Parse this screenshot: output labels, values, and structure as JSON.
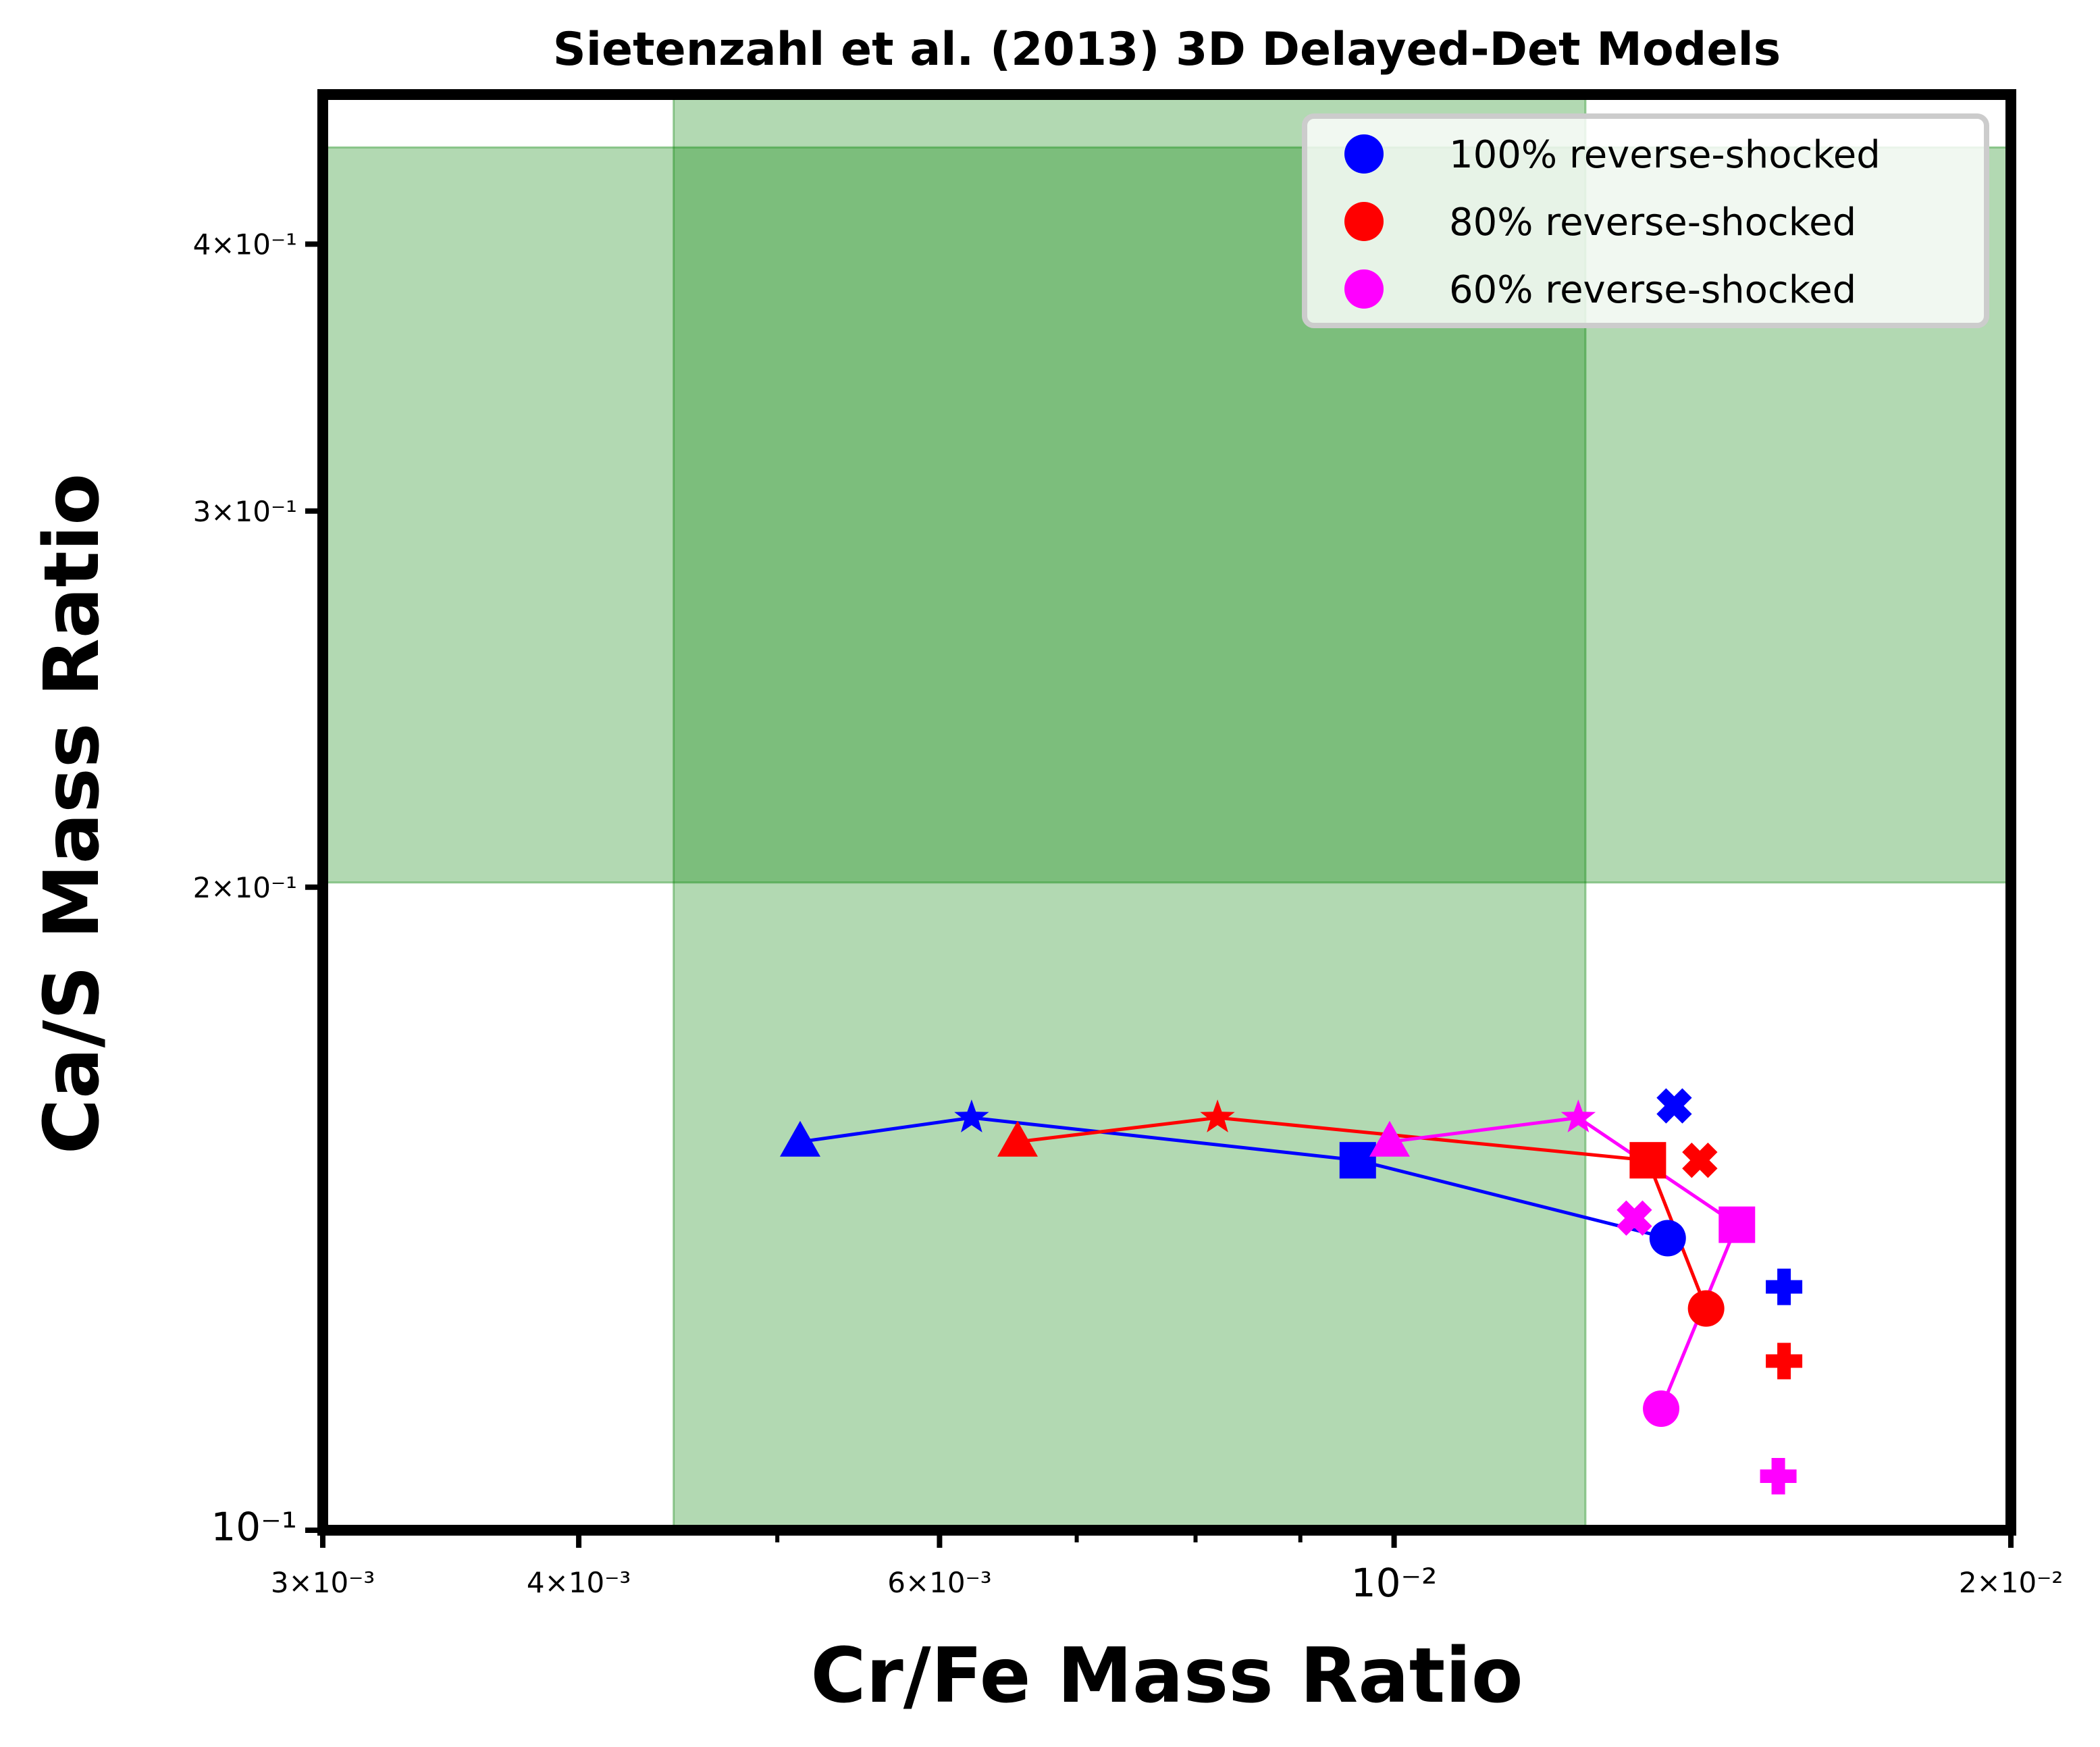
{
  "chart_data": {
    "type": "scatter",
    "title": "Sietenzahl et al. (2013) 3D Delayed-Det Models",
    "xlabel": "Cr/Fe Mass Ratio",
    "ylabel": "Ca/S Mass Ratio",
    "xscale": "log",
    "yscale": "log",
    "xlim": [
      0.003,
      0.02
    ],
    "ylim": [
      0.1,
      0.47
    ],
    "x_ticks": [
      {
        "value": 0.003,
        "label": "3×10⁻³"
      },
      {
        "value": 0.004,
        "label": "4×10⁻³"
      },
      {
        "value": 0.006,
        "label": "6×10⁻³"
      },
      {
        "value": 0.01,
        "label": "10⁻²"
      },
      {
        "value": 0.02,
        "label": "2×10⁻²"
      }
    ],
    "x_minor_ticks": [
      0.005,
      0.007,
      0.008,
      0.009
    ],
    "y_ticks": [
      {
        "value": 0.1,
        "label": "10⁻¹"
      },
      {
        "value": 0.2,
        "label": "2×10⁻¹"
      },
      {
        "value": 0.3,
        "label": "3×10⁻¹"
      },
      {
        "value": 0.4,
        "label": "4×10⁻¹"
      }
    ],
    "bands": [
      {
        "orientation": "vertical",
        "x_range": [
          0.00445,
          0.0124
        ],
        "color": "#008000",
        "opacity": 0.3
      },
      {
        "orientation": "horizontal",
        "y_range": [
          0.201,
          0.444
        ],
        "color": "#008000",
        "opacity": 0.3
      }
    ],
    "legend": {
      "location": "upper right",
      "entries": [
        {
          "label": "100% reverse-shocked",
          "color": "#0000ff"
        },
        {
          "label": "80% reverse-shocked",
          "color": "#ff0000"
        },
        {
          "label": "60% reverse-shocked",
          "color": "#ff00ff"
        }
      ]
    },
    "series": [
      {
        "color": "#0000ff",
        "connected": [
          {
            "marker": "triangle",
            "x": 0.00513,
            "y": 0.152
          },
          {
            "marker": "star",
            "x": 0.00622,
            "y": 0.156
          },
          {
            "marker": "square",
            "x": 0.0096,
            "y": 0.149
          },
          {
            "marker": "circle",
            "x": 0.0136,
            "y": 0.137
          }
        ],
        "unconnected": [
          {
            "marker": "x",
            "x": 0.0137,
            "y": 0.158
          },
          {
            "marker": "plus",
            "x": 0.0155,
            "y": 0.13
          }
        ]
      },
      {
        "color": "#ff0000",
        "connected": [
          {
            "marker": "triangle",
            "x": 0.00655,
            "y": 0.152
          },
          {
            "marker": "star",
            "x": 0.0082,
            "y": 0.156
          },
          {
            "marker": "square",
            "x": 0.0133,
            "y": 0.149
          },
          {
            "marker": "circle",
            "x": 0.0142,
            "y": 0.127
          }
        ],
        "unconnected": [
          {
            "marker": "x",
            "x": 0.0141,
            "y": 0.149
          },
          {
            "marker": "plus",
            "x": 0.0155,
            "y": 0.12
          }
        ]
      },
      {
        "color": "#ff00ff",
        "connected": [
          {
            "marker": "triangle",
            "x": 0.00995,
            "y": 0.152
          },
          {
            "marker": "star",
            "x": 0.0123,
            "y": 0.156
          },
          {
            "marker": "square",
            "x": 0.0147,
            "y": 0.139
          },
          {
            "marker": "circle",
            "x": 0.0135,
            "y": 0.114
          }
        ],
        "unconnected": [
          {
            "marker": "x",
            "x": 0.0131,
            "y": 0.14
          },
          {
            "marker": "plus",
            "x": 0.0154,
            "y": 0.106
          }
        ]
      }
    ]
  }
}
